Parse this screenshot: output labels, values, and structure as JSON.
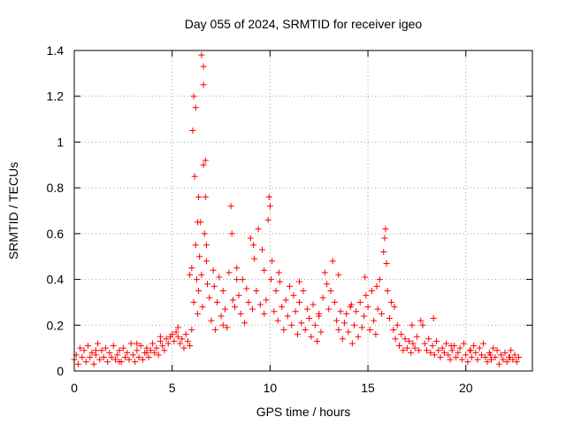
{
  "page": {
    "title": "Day 055 of 2024, SRMTID for receiver igeo"
  },
  "chart_data": {
    "type": "scatter",
    "title": "Day 055 of 2024, SRMTID for receiver igeo",
    "xlabel": "GPS time / hours",
    "ylabel": "SRMTID / TECUs",
    "xlim": [
      0,
      23.4
    ],
    "ylim": [
      0,
      1.4
    ],
    "grid": true,
    "marker": "+",
    "series_color": "#ff0000",
    "x_ticks": [
      0,
      5,
      10,
      15,
      20
    ],
    "x_tick_labels": [
      "0",
      "5",
      "10",
      "15",
      "20"
    ],
    "y_ticks": [
      0,
      0.2,
      0.4,
      0.6,
      0.8,
      1.0,
      1.2,
      1.4
    ],
    "y_tick_labels": [
      "0",
      "0.2",
      "0.4",
      "0.6",
      "0.8",
      "1",
      "1.2",
      "1.4"
    ],
    "series": [
      {
        "name": "SRMTID",
        "x": [
          0.0,
          0.1,
          0.2,
          0.3,
          0.4,
          0.5,
          0.6,
          0.7,
          0.8,
          0.9,
          1.0,
          1.1,
          1.2,
          1.3,
          1.4,
          1.5,
          1.6,
          1.7,
          1.8,
          1.9,
          2.0,
          2.1,
          2.2,
          2.3,
          2.4,
          2.5,
          2.6,
          2.7,
          2.8,
          2.9,
          3.0,
          3.1,
          3.2,
          3.3,
          3.4,
          3.5,
          3.6,
          3.7,
          3.8,
          3.9,
          4.0,
          4.1,
          4.2,
          4.3,
          4.4,
          4.5,
          4.6,
          4.7,
          4.8,
          4.9,
          5.0,
          5.1,
          5.2,
          5.3,
          5.4,
          5.5,
          5.6,
          5.7,
          5.8,
          5.9,
          6.0,
          6.0,
          6.05,
          6.1,
          6.1,
          6.15,
          6.2,
          6.2,
          6.25,
          6.3,
          6.3,
          6.35,
          6.4,
          6.5,
          6.5,
          6.55,
          6.6,
          6.6,
          6.65,
          6.7,
          6.7,
          6.75,
          6.8,
          6.9,
          7.0,
          7.1,
          7.2,
          7.3,
          7.4,
          7.5,
          7.6,
          7.7,
          7.8,
          7.9,
          8.0,
          8.05,
          8.1,
          8.2,
          8.3,
          8.4,
          8.5,
          8.6,
          8.7,
          8.8,
          8.9,
          9.0,
          9.1,
          9.2,
          9.3,
          9.4,
          9.5,
          9.6,
          9.7,
          9.8,
          9.9,
          9.95,
          10.0,
          10.05,
          10.1,
          10.2,
          10.3,
          10.4,
          10.5,
          10.6,
          10.7,
          10.8,
          10.9,
          11.0,
          11.1,
          11.2,
          11.3,
          11.4,
          11.5,
          11.6,
          11.7,
          11.8,
          11.9,
          12.0,
          12.1,
          12.2,
          12.3,
          12.4,
          12.5,
          12.6,
          12.7,
          12.8,
          12.9,
          13.0,
          13.1,
          13.2,
          13.3,
          13.4,
          13.5,
          13.6,
          13.7,
          13.8,
          13.9,
          14.0,
          14.1,
          14.2,
          14.3,
          14.4,
          14.5,
          14.6,
          14.7,
          14.8,
          14.9,
          15.0,
          15.1,
          15.2,
          15.3,
          15.4,
          15.5,
          15.6,
          15.7,
          15.8,
          15.85,
          15.9,
          15.95,
          16.0,
          16.1,
          16.2,
          16.3,
          16.4,
          16.5,
          16.6,
          16.7,
          16.8,
          16.9,
          17.0,
          17.1,
          17.2,
          17.3,
          17.4,
          17.5,
          17.6,
          17.7,
          17.8,
          17.9,
          18.0,
          18.1,
          18.2,
          18.3,
          18.4,
          18.5,
          18.6,
          18.7,
          18.8,
          18.9,
          19.0,
          19.1,
          19.2,
          19.3,
          19.4,
          19.5,
          19.6,
          19.7,
          19.8,
          19.9,
          20.0,
          20.1,
          20.2,
          20.3,
          20.4,
          20.5,
          20.6,
          20.7,
          20.8,
          20.9,
          21.0,
          21.1,
          21.2,
          21.3,
          21.4,
          21.5,
          21.6,
          21.7,
          21.8,
          21.9,
          22.0,
          22.1,
          22.2,
          22.3,
          22.4,
          22.5,
          22.6,
          22.7,
          1.1,
          2.3,
          3.2,
          4.4,
          5.3,
          6.35,
          6.45,
          6.6,
          6.75,
          7.15,
          7.6,
          8.3,
          9.15,
          9.7,
          10.45,
          11.5,
          12.5,
          13.5,
          14.15,
          14.85,
          15.45,
          16.35,
          17.25,
          18.35,
          19.25,
          20.25,
          21.25,
          22.25,
          3.7,
          5.9
        ],
        "y": [
          0.05,
          0.07,
          0.03,
          0.1,
          0.06,
          0.09,
          0.04,
          0.11,
          0.06,
          0.08,
          0.03,
          0.07,
          0.12,
          0.05,
          0.09,
          0.06,
          0.1,
          0.04,
          0.08,
          0.06,
          0.11,
          0.05,
          0.07,
          0.09,
          0.04,
          0.1,
          0.06,
          0.08,
          0.05,
          0.12,
          0.07,
          0.04,
          0.09,
          0.06,
          0.11,
          0.05,
          0.08,
          0.1,
          0.06,
          0.09,
          0.12,
          0.08,
          0.1,
          0.07,
          0.13,
          0.11,
          0.09,
          0.14,
          0.12,
          0.15,
          0.16,
          0.13,
          0.17,
          0.15,
          0.12,
          0.14,
          0.1,
          0.16,
          0.13,
          0.11,
          0.18,
          0.45,
          1.05,
          0.3,
          1.2,
          0.85,
          0.55,
          1.15,
          0.4,
          0.65,
          0.25,
          0.35,
          0.5,
          0.42,
          1.38,
          0.28,
          1.33,
          1.25,
          0.6,
          0.92,
          0.76,
          0.48,
          0.38,
          0.32,
          0.22,
          0.44,
          0.18,
          0.3,
          0.41,
          0.24,
          0.35,
          0.27,
          0.19,
          0.43,
          0.72,
          0.6,
          0.31,
          0.28,
          0.45,
          0.33,
          0.25,
          0.4,
          0.21,
          0.36,
          0.3,
          0.58,
          0.27,
          0.49,
          0.35,
          0.62,
          0.29,
          0.53,
          0.44,
          0.31,
          0.66,
          0.76,
          0.72,
          0.4,
          0.48,
          0.26,
          0.35,
          0.22,
          0.39,
          0.28,
          0.18,
          0.31,
          0.24,
          0.37,
          0.2,
          0.33,
          0.26,
          0.16,
          0.3,
          0.21,
          0.35,
          0.18,
          0.27,
          0.23,
          0.15,
          0.29,
          0.2,
          0.13,
          0.25,
          0.17,
          0.32,
          0.43,
          0.38,
          0.27,
          0.35,
          0.48,
          0.3,
          0.22,
          0.18,
          0.26,
          0.14,
          0.21,
          0.25,
          0.17,
          0.28,
          0.12,
          0.2,
          0.26,
          0.15,
          0.3,
          0.19,
          0.24,
          0.33,
          0.28,
          0.18,
          0.35,
          0.22,
          0.16,
          0.27,
          0.4,
          0.25,
          0.52,
          0.58,
          0.62,
          0.47,
          0.35,
          0.23,
          0.3,
          0.18,
          0.14,
          0.2,
          0.11,
          0.16,
          0.09,
          0.14,
          0.1,
          0.13,
          0.08,
          0.12,
          0.1,
          0.15,
          0.09,
          0.22,
          0.2,
          0.12,
          0.09,
          0.14,
          0.08,
          0.11,
          0.07,
          0.13,
          0.09,
          0.06,
          0.1,
          0.08,
          0.12,
          0.07,
          0.05,
          0.09,
          0.11,
          0.06,
          0.08,
          0.1,
          0.05,
          0.12,
          0.07,
          0.04,
          0.09,
          0.06,
          0.11,
          0.08,
          0.05,
          0.1,
          0.07,
          0.12,
          0.06,
          0.04,
          0.08,
          0.05,
          0.1,
          0.06,
          0.09,
          0.03,
          0.07,
          0.05,
          0.08,
          0.04,
          0.06,
          0.09,
          0.05,
          0.07,
          0.04,
          0.06,
          0.09,
          0.04,
          0.12,
          0.15,
          0.19,
          0.76,
          0.65,
          0.9,
          0.55,
          0.37,
          0.2,
          0.4,
          0.55,
          0.25,
          0.43,
          0.39,
          0.24,
          0.42,
          0.29,
          0.41,
          0.37,
          0.28,
          0.2,
          0.23,
          0.11,
          0.09,
          0.07,
          0.06,
          0.08,
          0.42
        ]
      }
    ]
  }
}
